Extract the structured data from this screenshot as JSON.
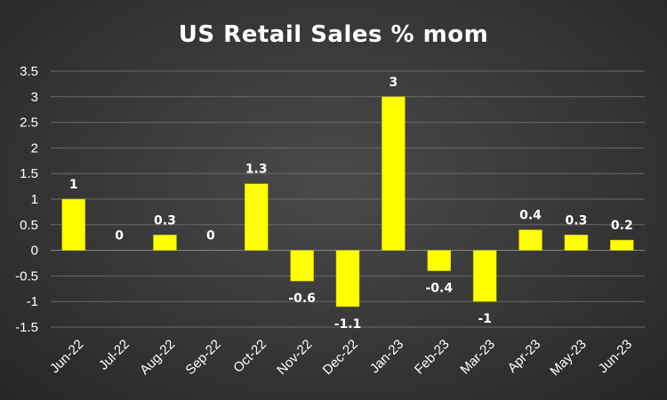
{
  "chart_data": {
    "type": "bar",
    "title": "US Retail Sales % mom",
    "xlabel": "",
    "ylabel": "",
    "categories": [
      "Jun-22",
      "Jul-22",
      "Aug-22",
      "Sep-22",
      "Oct-22",
      "Nov-22",
      "Dec-22",
      "Jan-23",
      "Feb-23",
      "Mar-23",
      "Apr-23",
      "May-23",
      "Jun-23"
    ],
    "values": [
      1,
      0,
      0.3,
      0,
      1.3,
      -0.6,
      -1.1,
      3,
      -0.4,
      -1,
      0.4,
      0.3,
      0.2
    ],
    "data_labels": [
      "1",
      "0",
      "0.3",
      "0",
      "1.3",
      "-0.6",
      "-1.1",
      "3",
      "-0.4",
      "-1",
      "0.4",
      "0.3",
      "0.2"
    ],
    "ylim": [
      -1.5,
      3.5
    ],
    "y_ticks": [
      -1.5,
      -1,
      -0.5,
      0,
      0.5,
      1,
      1.5,
      2,
      2.5,
      3,
      3.5
    ],
    "y_tick_labels": [
      "-1.5",
      "-1",
      "-0.5",
      "0",
      "0.5",
      "1",
      "1.5",
      "2",
      "2.5",
      "3",
      "3.5"
    ],
    "grid": true,
    "legend": "none",
    "colors": {
      "bar": "#ffff00",
      "bar_edge": "#b8b800",
      "background": "#3a3a3a",
      "text": "#ffffff",
      "grid": "#6a6a6a"
    }
  }
}
